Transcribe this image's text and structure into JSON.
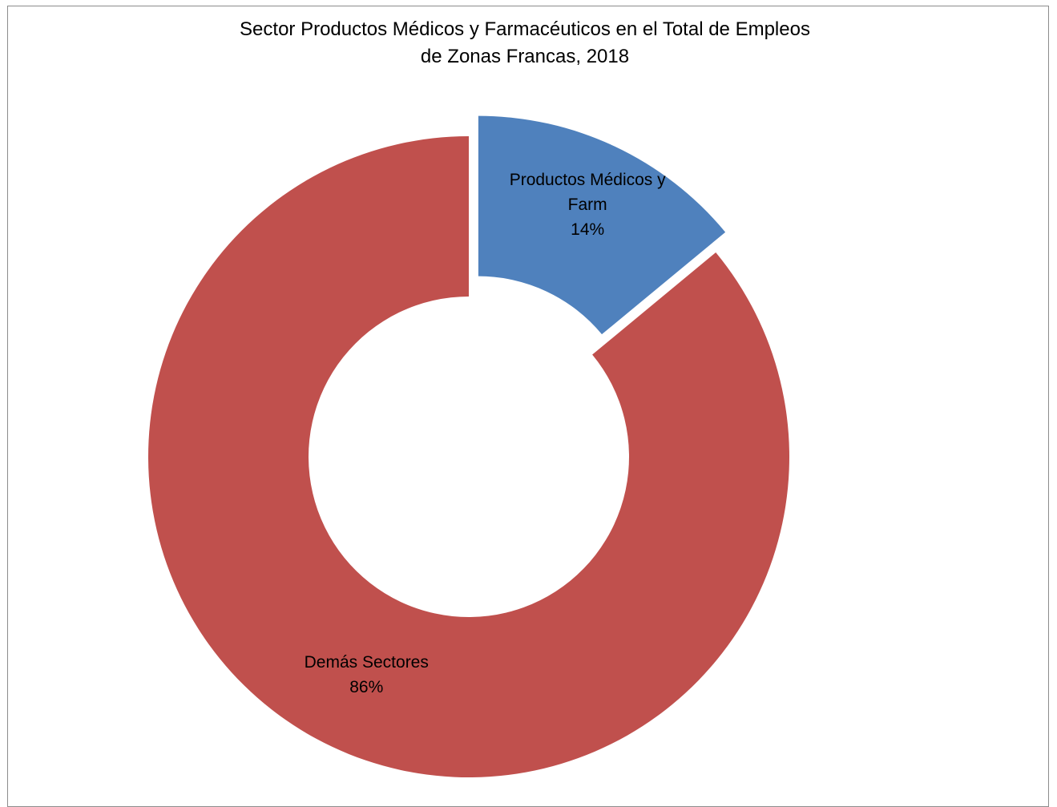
{
  "chart_data": {
    "type": "pie",
    "variant": "donut",
    "title": "Sector Productos Médicos y Farmacéuticos en el Total de Empleos\nde Zonas Francas, 2018",
    "slices": [
      {
        "name": "Productos Médicos y Farm",
        "label_lines": [
          "Productos Médicos y",
          "Farm"
        ],
        "value": 14,
        "value_label": "14%",
        "color": "#4f81bd",
        "exploded": true
      },
      {
        "name": "Demás Sectores",
        "label_lines": [
          "Demás Sectores"
        ],
        "value": 86,
        "value_label": "86%",
        "color": "#c0504d",
        "exploded": false
      }
    ],
    "legend": "none"
  }
}
